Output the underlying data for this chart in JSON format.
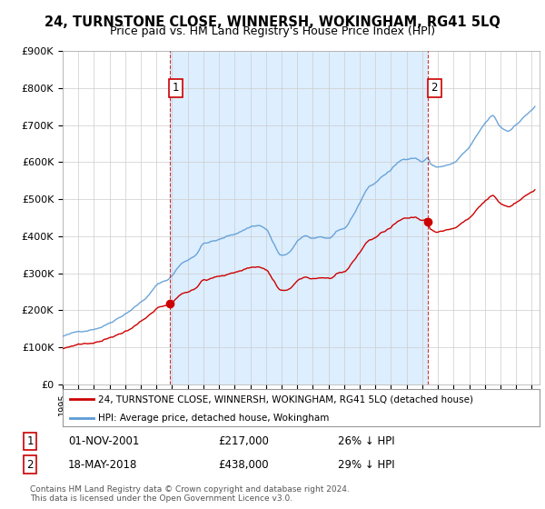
{
  "title": "24, TURNSTONE CLOSE, WINNERSH, WOKINGHAM, RG41 5LQ",
  "subtitle": "Price paid vs. HM Land Registry's House Price Index (HPI)",
  "ylabel_ticks": [
    "£0",
    "£100K",
    "£200K",
    "£300K",
    "£400K",
    "£500K",
    "£600K",
    "£700K",
    "£800K",
    "£900K"
  ],
  "ylim": [
    0,
    900000
  ],
  "xlim_start": 1995.0,
  "xlim_end": 2025.5,
  "legend_line1": "24, TURNSTONE CLOSE, WINNERSH, WOKINGHAM, RG41 5LQ (detached house)",
  "legend_line2": "HPI: Average price, detached house, Wokingham",
  "sale1_date": 2001.84,
  "sale1_price": 217000,
  "sale2_date": 2018.38,
  "sale2_price": 438000,
  "sale1_hpi_factor": 0.74,
  "sale2_hpi_factor": 0.71,
  "footer": "Contains HM Land Registry data © Crown copyright and database right 2024.\nThis data is licensed under the Open Government Licence v3.0.",
  "hpi_color": "#5b9bd5",
  "hpi_shade_color": "#ddeeff",
  "price_color": "#cc0000",
  "dashed_color": "#cc0000",
  "background_color": "#ffffff",
  "grid_color": "#cccccc"
}
